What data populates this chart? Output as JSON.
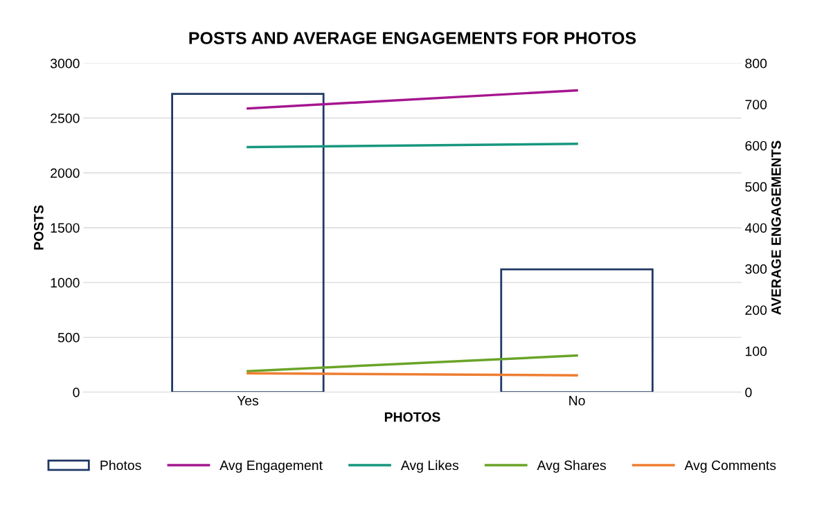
{
  "chart_data": {
    "type": "bar",
    "title": "POSTS AND AVERAGE ENGAGEMENTS FOR PHOTOS",
    "xlabel": "PHOTOS",
    "ylabel": "POSTS",
    "y2label": "AVERAGE ENGAGEMENTS",
    "categories": [
      "Yes",
      "No"
    ],
    "series": [
      {
        "name": "Photos",
        "color": "#1f3864",
        "values": [
          2720,
          1120
        ]
      },
      {
        "name": "Avg Engagement",
        "type": "line",
        "axis": "y2",
        "color": "#a5168f",
        "values": [
          690,
          734
        ]
      },
      {
        "name": "Avg Likes",
        "type": "line",
        "axis": "y2",
        "color": "#17977e",
        "values": [
          596,
          604
        ]
      },
      {
        "name": "Avg Shares",
        "type": "line",
        "axis": "y2",
        "color": "#6aa428",
        "values": [
          51,
          89
        ]
      },
      {
        "name": "Avg Comments",
        "type": "line",
        "axis": "y2",
        "color": "#ee7d31",
        "values": [
          46,
          41
        ]
      }
    ],
    "ylim": [
      0,
      3000
    ],
    "yticks": [
      0,
      500,
      1000,
      1500,
      2000,
      2500,
      3000
    ],
    "y2lim": [
      0,
      800
    ],
    "y2ticks": [
      0,
      100,
      200,
      300,
      400,
      500,
      600,
      700,
      800
    ],
    "grid": "y",
    "legend": "bottom",
    "marker": "none",
    "line_style": "solid"
  }
}
